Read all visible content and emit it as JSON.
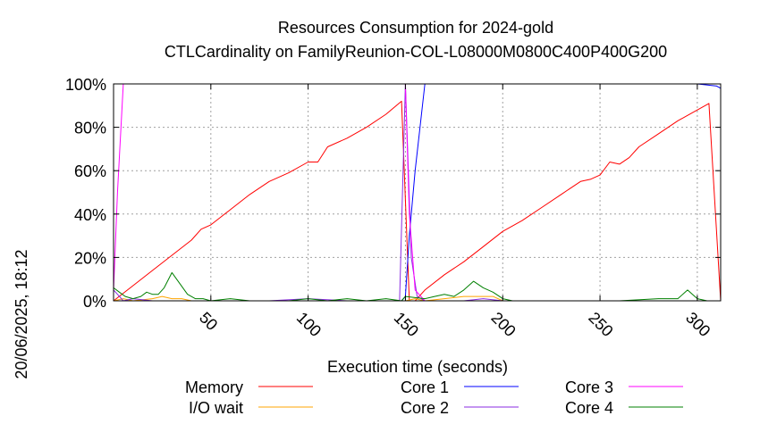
{
  "chart_data": {
    "type": "line",
    "title": "Resources Consumption for 2024-gold",
    "subtitle": "CTLCardinality on FamilyReunion-COL-L08000M0800C400P400G200",
    "xlabel": "Execution time (seconds)",
    "ylabel": "",
    "side_label": "20/06/2025, 18:12",
    "xlim": [
      0,
      312
    ],
    "ylim": [
      0,
      100
    ],
    "x_ticks": [
      50,
      100,
      150,
      200,
      250,
      300
    ],
    "y_ticks": [
      0,
      20,
      40,
      60,
      80,
      100
    ],
    "y_tick_labels": [
      "0%",
      "20%",
      "40%",
      "60%",
      "80%",
      "100%"
    ],
    "grid": true,
    "legend_position": "bottom",
    "series": [
      {
        "name": "Memory",
        "color": "#ff0000",
        "x": [
          0,
          10,
          20,
          30,
          40,
          45,
          50,
          60,
          70,
          80,
          90,
          100,
          105,
          110,
          120,
          130,
          140,
          148,
          152,
          155,
          160,
          170,
          180,
          190,
          200,
          210,
          220,
          230,
          240,
          245,
          250,
          255,
          260,
          265,
          270,
          280,
          290,
          300,
          306,
          312
        ],
        "y": [
          0,
          7,
          14,
          21,
          28,
          33,
          35,
          42,
          49,
          55,
          59,
          64,
          64,
          71,
          75,
          80,
          86,
          92,
          0,
          0,
          5,
          12,
          18,
          25,
          32,
          37,
          43,
          49,
          55,
          56,
          58,
          64,
          63,
          66,
          71,
          77,
          83,
          88,
          91,
          0
        ]
      },
      {
        "name": "I/O wait",
        "color": "#ffa500",
        "x": [
          0,
          5,
          10,
          20,
          25,
          30,
          35,
          40,
          50,
          100,
          148,
          150,
          155,
          160,
          170,
          180,
          185,
          190,
          195,
          200,
          312
        ],
        "y": [
          0,
          1,
          0,
          1,
          2,
          1,
          1,
          0,
          0,
          0,
          0,
          0,
          1,
          0,
          1,
          2,
          2,
          2,
          2,
          0,
          0
        ]
      },
      {
        "name": "Core 1",
        "color": "#0000ff",
        "x": [
          0,
          148,
          150,
          152,
          155,
          160,
          200,
          300,
          310,
          312
        ],
        "y": [
          0,
          0,
          2,
          30,
          60,
          100,
          100,
          100,
          99,
          98
        ]
      },
      {
        "name": "Core 2",
        "color": "#8a2be2",
        "x": [
          0,
          2,
          5,
          10,
          20,
          40,
          60,
          80,
          100,
          120,
          140,
          147,
          150,
          153,
          156,
          160,
          170,
          180,
          190,
          200,
          312
        ],
        "y": [
          5,
          3,
          0,
          1,
          0,
          0,
          0,
          0,
          1,
          0,
          0,
          0,
          100,
          20,
          2,
          0,
          0,
          0,
          1,
          0,
          0
        ]
      },
      {
        "name": "Core 3",
        "color": "#ff00ff",
        "x": [
          0,
          2,
          5,
          148,
          150,
          152,
          155,
          160,
          312
        ],
        "y": [
          5,
          50,
          100,
          100,
          100,
          40,
          5,
          0,
          0
        ]
      },
      {
        "name": "Core 4",
        "color": "#008000",
        "x": [
          0,
          3,
          6,
          10,
          14,
          17,
          20,
          23,
          26,
          30,
          34,
          38,
          42,
          46,
          50,
          60,
          70,
          80,
          90,
          100,
          110,
          120,
          130,
          140,
          148,
          150,
          160,
          165,
          170,
          175,
          180,
          185,
          190,
          195,
          200,
          205,
          210,
          220,
          240,
          260,
          280,
          290,
          295,
          300,
          305,
          312
        ],
        "y": [
          6,
          4,
          2,
          1,
          2,
          4,
          3,
          3,
          6,
          13,
          8,
          3,
          1,
          1,
          0,
          1,
          0,
          0,
          0,
          1,
          0,
          1,
          0,
          1,
          0,
          2,
          1,
          2,
          3,
          2,
          5,
          9,
          6,
          4,
          1,
          0,
          0,
          0,
          0,
          0,
          1,
          1,
          5,
          1,
          0,
          0
        ]
      }
    ]
  }
}
